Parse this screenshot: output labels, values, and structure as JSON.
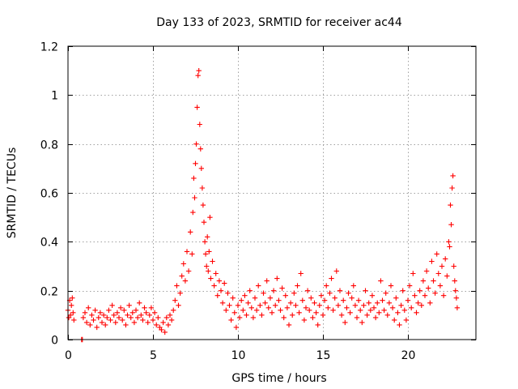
{
  "chart_data": {
    "type": "scatter",
    "title": "Day 133 of 2023, SRMTID for receiver ac44",
    "xlabel": "GPS time / hours",
    "ylabel": "SRMTID / TECUs",
    "xlim": [
      0,
      24
    ],
    "ylim": [
      0,
      1.2
    ],
    "x_ticks": [
      0,
      5,
      10,
      15,
      20
    ],
    "y_ticks": [
      0,
      0.2,
      0.4,
      0.6,
      0.8,
      1,
      1.2
    ],
    "x_tick_labels": [
      "0",
      "5",
      "10",
      "15",
      "20"
    ],
    "y_tick_labels": [
      "0",
      "0.2",
      "0.4",
      "0.6",
      "0.8",
      "1",
      "1.2"
    ],
    "grid": true,
    "marker": "+",
    "color": "#ff0000",
    "series": [
      {
        "name": "SRMTID",
        "points": [
          [
            0.0,
            0.12
          ],
          [
            0.05,
            0.09
          ],
          [
            0.1,
            0.16
          ],
          [
            0.15,
            0.1
          ],
          [
            0.2,
            0.14
          ],
          [
            0.25,
            0.17
          ],
          [
            0.3,
            0.11
          ],
          [
            0.35,
            0.08
          ],
          [
            0.8,
            0.0
          ],
          [
            0.85,
            0.0
          ],
          [
            0.9,
            0.09
          ],
          [
            1.0,
            0.11
          ],
          [
            1.1,
            0.07
          ],
          [
            1.2,
            0.13
          ],
          [
            1.3,
            0.06
          ],
          [
            1.4,
            0.1
          ],
          [
            1.5,
            0.08
          ],
          [
            1.6,
            0.12
          ],
          [
            1.7,
            0.05
          ],
          [
            1.8,
            0.09
          ],
          [
            1.9,
            0.11
          ],
          [
            2.0,
            0.07
          ],
          [
            2.1,
            0.1
          ],
          [
            2.2,
            0.06
          ],
          [
            2.3,
            0.09
          ],
          [
            2.4,
            0.12
          ],
          [
            2.5,
            0.08
          ],
          [
            2.6,
            0.14
          ],
          [
            2.7,
            0.1
          ],
          [
            2.8,
            0.07
          ],
          [
            2.9,
            0.11
          ],
          [
            3.0,
            0.09
          ],
          [
            3.1,
            0.13
          ],
          [
            3.2,
            0.08
          ],
          [
            3.3,
            0.12
          ],
          [
            3.4,
            0.06
          ],
          [
            3.5,
            0.1
          ],
          [
            3.6,
            0.14
          ],
          [
            3.7,
            0.09
          ],
          [
            3.8,
            0.11
          ],
          [
            3.9,
            0.07
          ],
          [
            4.0,
            0.12
          ],
          [
            4.1,
            0.09
          ],
          [
            4.2,
            0.15
          ],
          [
            4.3,
            0.1
          ],
          [
            4.4,
            0.08
          ],
          [
            4.5,
            0.13
          ],
          [
            4.6,
            0.11
          ],
          [
            4.7,
            0.07
          ],
          [
            4.8,
            0.1
          ],
          [
            4.9,
            0.13
          ],
          [
            5.0,
            0.08
          ],
          [
            5.1,
            0.11
          ],
          [
            5.2,
            0.06
          ],
          [
            5.3,
            0.09
          ],
          [
            5.4,
            0.05
          ],
          [
            5.5,
            0.04
          ],
          [
            5.6,
            0.07
          ],
          [
            5.7,
            0.03
          ],
          [
            5.8,
            0.09
          ],
          [
            5.9,
            0.06
          ],
          [
            6.0,
            0.1
          ],
          [
            6.1,
            0.08
          ],
          [
            6.2,
            0.12
          ],
          [
            6.3,
            0.16
          ],
          [
            6.4,
            0.22
          ],
          [
            6.5,
            0.14
          ],
          [
            6.6,
            0.19
          ],
          [
            6.7,
            0.26
          ],
          [
            6.8,
            0.31
          ],
          [
            6.9,
            0.24
          ],
          [
            7.0,
            0.36
          ],
          [
            7.1,
            0.28
          ],
          [
            7.2,
            0.44
          ],
          [
            7.3,
            0.35
          ],
          [
            7.35,
            0.52
          ],
          [
            7.4,
            0.66
          ],
          [
            7.45,
            0.58
          ],
          [
            7.5,
            0.72
          ],
          [
            7.55,
            0.8
          ],
          [
            7.6,
            0.95
          ],
          [
            7.65,
            1.08
          ],
          [
            7.7,
            1.1
          ],
          [
            7.75,
            0.88
          ],
          [
            7.8,
            0.78
          ],
          [
            7.85,
            0.7
          ],
          [
            7.9,
            0.62
          ],
          [
            7.95,
            0.55
          ],
          [
            8.0,
            0.48
          ],
          [
            8.05,
            0.4
          ],
          [
            8.1,
            0.35
          ],
          [
            8.15,
            0.3
          ],
          [
            8.2,
            0.42
          ],
          [
            8.25,
            0.28
          ],
          [
            8.3,
            0.36
          ],
          [
            8.35,
            0.5
          ],
          [
            8.4,
            0.25
          ],
          [
            8.5,
            0.32
          ],
          [
            8.6,
            0.22
          ],
          [
            8.7,
            0.27
          ],
          [
            8.8,
            0.18
          ],
          [
            8.9,
            0.24
          ],
          [
            9.0,
            0.2
          ],
          [
            9.1,
            0.15
          ],
          [
            9.2,
            0.23
          ],
          [
            9.3,
            0.12
          ],
          [
            9.4,
            0.19
          ],
          [
            9.5,
            0.14
          ],
          [
            9.6,
            0.08
          ],
          [
            9.7,
            0.17
          ],
          [
            9.8,
            0.11
          ],
          [
            9.9,
            0.05
          ],
          [
            10.0,
            0.14
          ],
          [
            10.1,
            0.09
          ],
          [
            10.2,
            0.16
          ],
          [
            10.3,
            0.12
          ],
          [
            10.4,
            0.18
          ],
          [
            10.5,
            0.1
          ],
          [
            10.6,
            0.15
          ],
          [
            10.7,
            0.2
          ],
          [
            10.8,
            0.13
          ],
          [
            10.9,
            0.09
          ],
          [
            11.0,
            0.17
          ],
          [
            11.1,
            0.12
          ],
          [
            11.2,
            0.22
          ],
          [
            11.3,
            0.14
          ],
          [
            11.4,
            0.1
          ],
          [
            11.5,
            0.19
          ],
          [
            11.6,
            0.15
          ],
          [
            11.7,
            0.24
          ],
          [
            11.8,
            0.13
          ],
          [
            11.9,
            0.17
          ],
          [
            12.0,
            0.11
          ],
          [
            12.1,
            0.2
          ],
          [
            12.2,
            0.14
          ],
          [
            12.3,
            0.25
          ],
          [
            12.4,
            0.16
          ],
          [
            12.5,
            0.12
          ],
          [
            12.6,
            0.21
          ],
          [
            12.7,
            0.09
          ],
          [
            12.8,
            0.18
          ],
          [
            12.9,
            0.13
          ],
          [
            13.0,
            0.06
          ],
          [
            13.1,
            0.15
          ],
          [
            13.2,
            0.1
          ],
          [
            13.3,
            0.19
          ],
          [
            13.4,
            0.14
          ],
          [
            13.5,
            0.22
          ],
          [
            13.6,
            0.11
          ],
          [
            13.7,
            0.27
          ],
          [
            13.8,
            0.16
          ],
          [
            13.9,
            0.08
          ],
          [
            14.0,
            0.13
          ],
          [
            14.1,
            0.2
          ],
          [
            14.2,
            0.12
          ],
          [
            14.3,
            0.17
          ],
          [
            14.4,
            0.09
          ],
          [
            14.5,
            0.15
          ],
          [
            14.6,
            0.11
          ],
          [
            14.7,
            0.06
          ],
          [
            14.8,
            0.14
          ],
          [
            14.9,
            0.18
          ],
          [
            15.0,
            0.1
          ],
          [
            15.1,
            0.16
          ],
          [
            15.2,
            0.22
          ],
          [
            15.3,
            0.13
          ],
          [
            15.4,
            0.19
          ],
          [
            15.5,
            0.25
          ],
          [
            15.6,
            0.12
          ],
          [
            15.7,
            0.17
          ],
          [
            15.8,
            0.28
          ],
          [
            15.9,
            0.14
          ],
          [
            16.0,
            0.2
          ],
          [
            16.1,
            0.1
          ],
          [
            16.2,
            0.16
          ],
          [
            16.3,
            0.07
          ],
          [
            16.4,
            0.13
          ],
          [
            16.5,
            0.19
          ],
          [
            16.6,
            0.11
          ],
          [
            16.7,
            0.17
          ],
          [
            16.8,
            0.22
          ],
          [
            16.9,
            0.14
          ],
          [
            17.0,
            0.09
          ],
          [
            17.1,
            0.16
          ],
          [
            17.2,
            0.12
          ],
          [
            17.3,
            0.07
          ],
          [
            17.4,
            0.14
          ],
          [
            17.5,
            0.2
          ],
          [
            17.6,
            0.1
          ],
          [
            17.7,
            0.15
          ],
          [
            17.8,
            0.12
          ],
          [
            17.9,
            0.18
          ],
          [
            18.0,
            0.13
          ],
          [
            18.1,
            0.09
          ],
          [
            18.2,
            0.15
          ],
          [
            18.3,
            0.11
          ],
          [
            18.4,
            0.24
          ],
          [
            18.5,
            0.16
          ],
          [
            18.6,
            0.12
          ],
          [
            18.7,
            0.19
          ],
          [
            18.8,
            0.1
          ],
          [
            18.9,
            0.15
          ],
          [
            19.0,
            0.22
          ],
          [
            19.1,
            0.13
          ],
          [
            19.2,
            0.08
          ],
          [
            19.3,
            0.17
          ],
          [
            19.4,
            0.11
          ],
          [
            19.5,
            0.06
          ],
          [
            19.6,
            0.14
          ],
          [
            19.7,
            0.2
          ],
          [
            19.8,
            0.12
          ],
          [
            19.9,
            0.08
          ],
          [
            20.0,
            0.16
          ],
          [
            20.1,
            0.22
          ],
          [
            20.2,
            0.13
          ],
          [
            20.3,
            0.27
          ],
          [
            20.4,
            0.18
          ],
          [
            20.5,
            0.11
          ],
          [
            20.6,
            0.15
          ],
          [
            20.7,
            0.2
          ],
          [
            20.8,
            0.14
          ],
          [
            20.9,
            0.24
          ],
          [
            21.0,
            0.18
          ],
          [
            21.1,
            0.28
          ],
          [
            21.2,
            0.21
          ],
          [
            21.3,
            0.15
          ],
          [
            21.4,
            0.32
          ],
          [
            21.5,
            0.24
          ],
          [
            21.6,
            0.19
          ],
          [
            21.7,
            0.35
          ],
          [
            21.8,
            0.27
          ],
          [
            21.9,
            0.22
          ],
          [
            22.0,
            0.3
          ],
          [
            22.1,
            0.18
          ],
          [
            22.2,
            0.33
          ],
          [
            22.3,
            0.26
          ],
          [
            22.4,
            0.4
          ],
          [
            22.45,
            0.38
          ],
          [
            22.5,
            0.55
          ],
          [
            22.55,
            0.47
          ],
          [
            22.6,
            0.62
          ],
          [
            22.65,
            0.67
          ],
          [
            22.7,
            0.3
          ],
          [
            22.75,
            0.24
          ],
          [
            22.8,
            0.2
          ],
          [
            22.85,
            0.17
          ],
          [
            22.9,
            0.13
          ]
        ]
      }
    ]
  }
}
